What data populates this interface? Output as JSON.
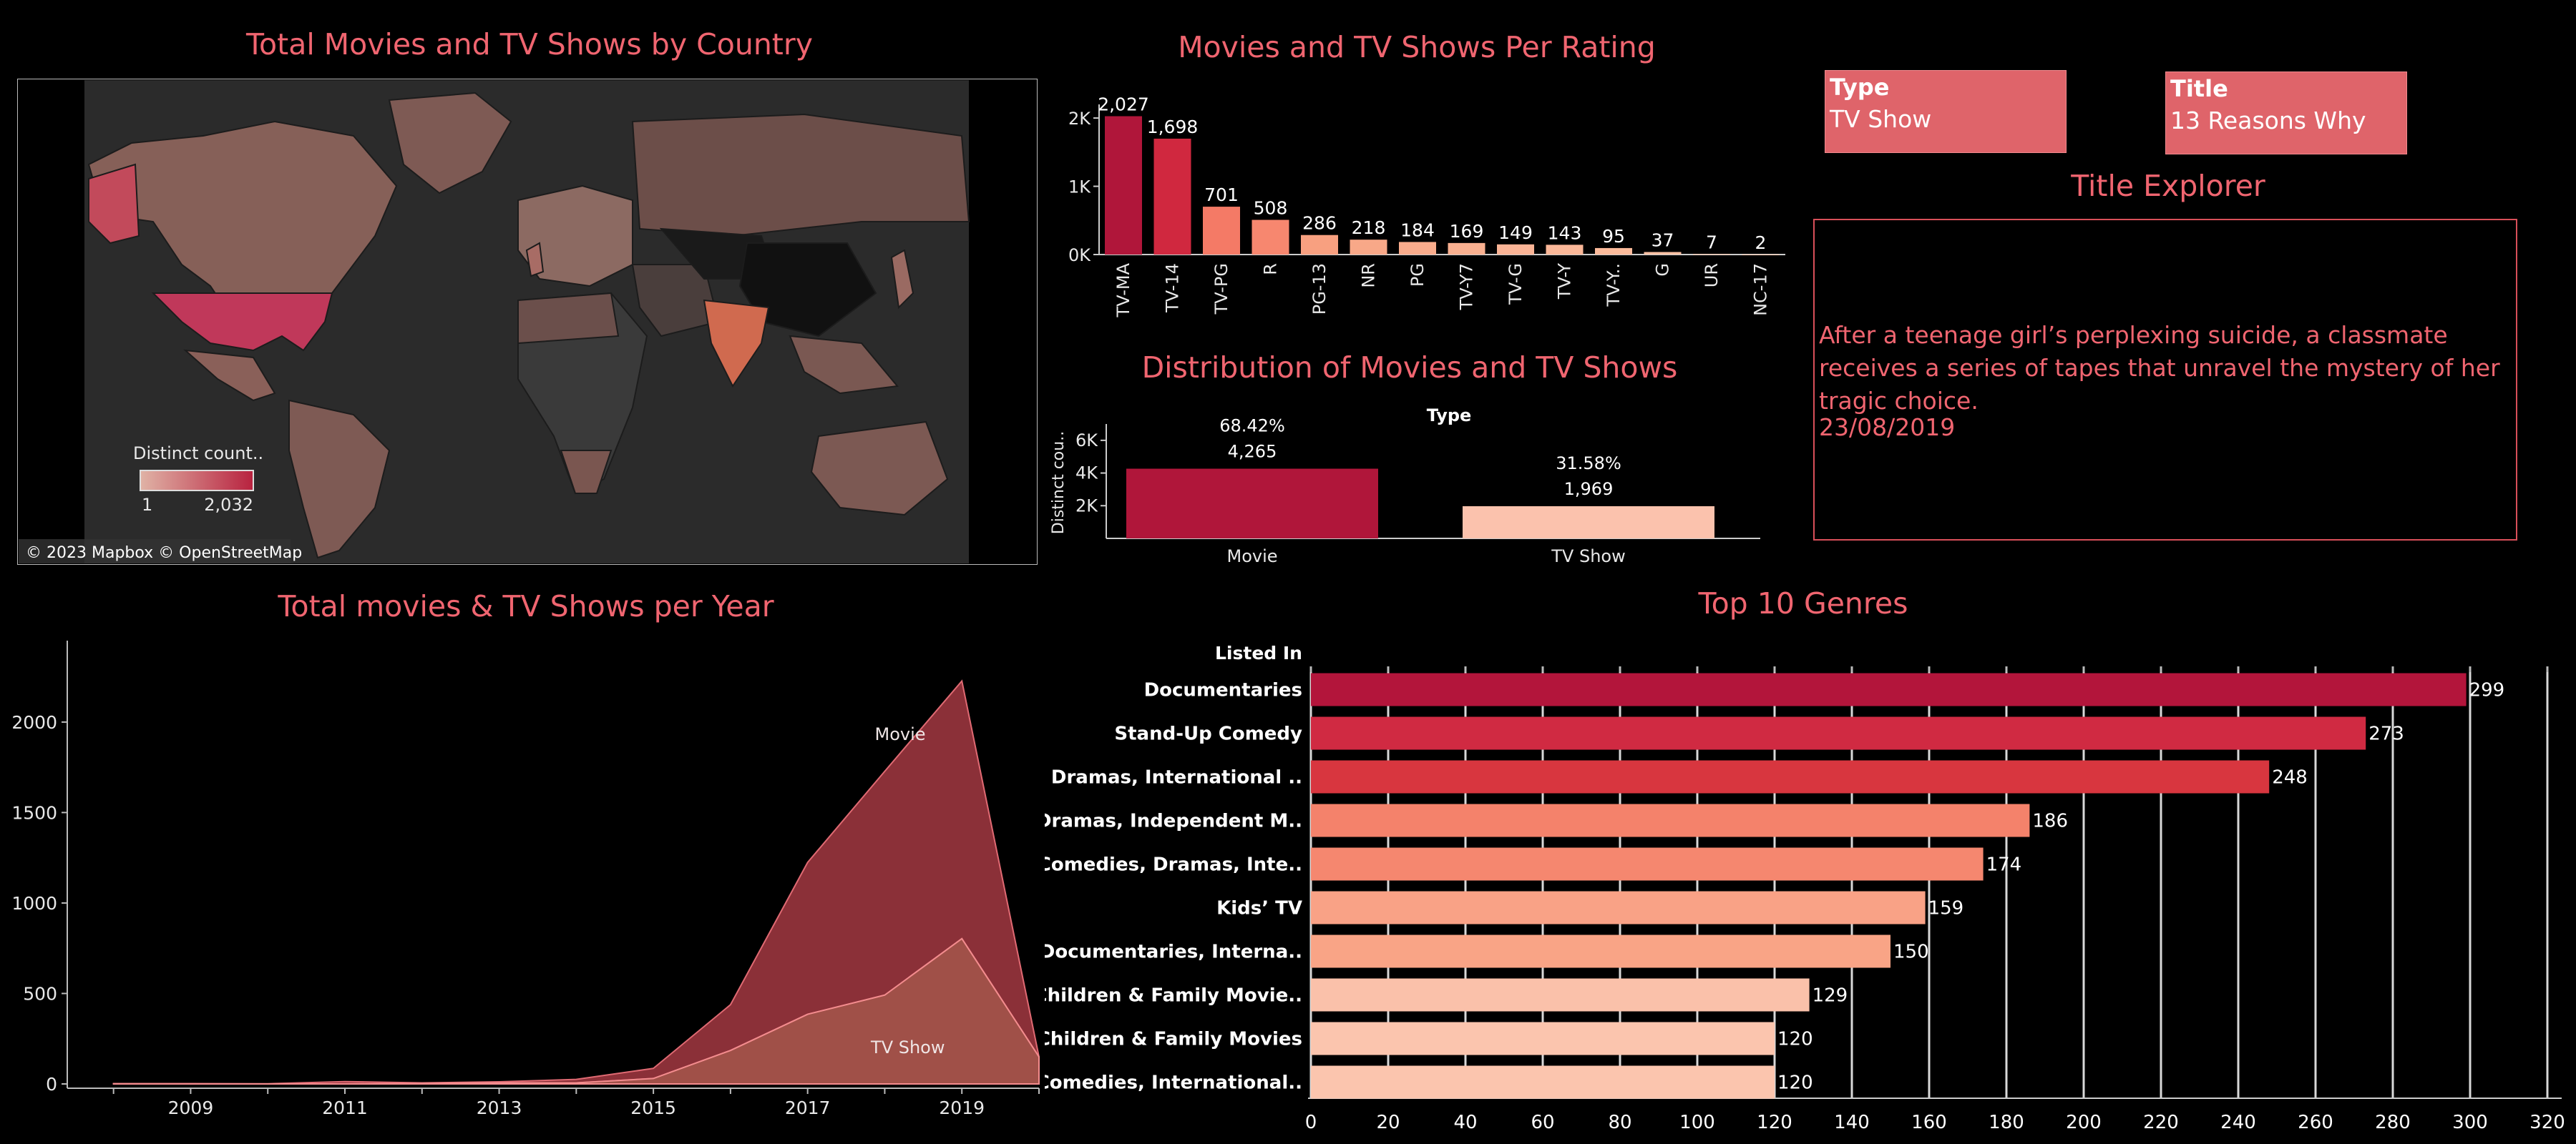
{
  "titles": {
    "map": "Total Movies and TV Shows by Country",
    "rating": "Movies and TV Shows Per Rating",
    "distribution": "Distribution of Movies and TV Shows",
    "explorer": "Title Explorer",
    "year": "Total movies & TV Shows per Year",
    "genres": "Top 10 Genres"
  },
  "filters": {
    "type_label": "Type",
    "type_value": "TV Show",
    "title_label": "Title",
    "title_value": "13 Reasons Why"
  },
  "explorer": {
    "description": "After a teenage girl’s perplexing suicide, a classmate receives a series of tapes that unravel the mystery of her tragic choice.",
    "date": "23/08/2019"
  },
  "map": {
    "legend_title": "Distinct count..",
    "legend_min": "1",
    "legend_max": "2,032",
    "attribution": "© 2023 Mapbox © OpenStreetMap",
    "colors": {
      "low": "#f7c3a6",
      "high": "#b8223f",
      "ocean": "#2b2b2b",
      "land_na": "#111111"
    }
  },
  "chart_data": [
    {
      "type": "bar",
      "title": "Movies and TV Shows Per Rating",
      "categories": [
        "TV-MA",
        "TV-14",
        "TV-PG",
        "R",
        "PG-13",
        "NR",
        "PG",
        "TV-Y7",
        "TV-G",
        "TV-Y",
        "TV-Y..",
        "G",
        "UR",
        "NC-17"
      ],
      "values": [
        2027,
        1698,
        701,
        508,
        286,
        218,
        184,
        169,
        149,
        143,
        95,
        37,
        7,
        2
      ],
      "value_labels": [
        "2,027",
        "1,698",
        "701",
        "508",
        "286",
        "218",
        "184",
        "169",
        "149",
        "143",
        "95",
        "37",
        "7",
        "2"
      ],
      "ylim": [
        0,
        2200
      ],
      "yticks": [
        0,
        1000,
        2000
      ],
      "ytick_labels": [
        "0K",
        "1K",
        "2K"
      ],
      "colors": [
        "#b0163a",
        "#d0283f",
        "#f47a66",
        "#f7876f",
        "#f8a080",
        "#f8a888",
        "#f9ac8c",
        "#f9b090",
        "#fab496",
        "#fab798",
        "#fbbb9c",
        "#fbc1a4",
        "#fbc5a8",
        "#fbc8ab"
      ]
    },
    {
      "type": "bar",
      "title": "Distribution of Movies and TV Shows",
      "header": "Type",
      "ylabel": "Distinct cou..",
      "categories": [
        "Movie",
        "TV Show"
      ],
      "values": [
        4265,
        1969
      ],
      "percent_labels": [
        "68.42%",
        "31.58%"
      ],
      "value_labels": [
        "4,265",
        "1,969"
      ],
      "ylim": [
        0,
        7000
      ],
      "yticks": [
        2000,
        4000,
        6000
      ],
      "ytick_labels": [
        "2K",
        "4K",
        "6K"
      ],
      "colors": [
        "#b0163a",
        "#fbc2ad"
      ]
    },
    {
      "type": "area",
      "title": "Total movies & TV Shows per Year",
      "x": [
        2008,
        2009,
        2010,
        2011,
        2012,
        2013,
        2014,
        2015,
        2016,
        2017,
        2018,
        2019,
        2020
      ],
      "series": [
        {
          "name": "Movie",
          "values": [
            1,
            2,
            1,
            13,
            3,
            6,
            19,
            56,
            253,
            839,
            1237,
            1424,
            0
          ]
        },
        {
          "name": "TV Show",
          "values": [
            1,
            0,
            0,
            0,
            3,
            6,
            6,
            30,
            185,
            385,
            491,
            803,
            150
          ]
        }
      ],
      "ylim": [
        0,
        2450
      ],
      "yticks": [
        0,
        500,
        1000,
        1500,
        2000
      ],
      "xticks": [
        2009,
        2011,
        2013,
        2015,
        2017,
        2019
      ],
      "colors": {
        "Movie": "#8b3038",
        "TV Show": "#a05048",
        "line_movie": "#e06a73",
        "line_tv": "#f38c8e"
      }
    },
    {
      "type": "bar",
      "orientation": "horizontal",
      "title": "Top 10 Genres",
      "header": "Listed In",
      "categories": [
        "Documentaries",
        "Stand-Up Comedy",
        "Dramas, International ..",
        "Dramas, Independent M..",
        "Comedies, Dramas, Inte..",
        "Kids’ TV",
        "Documentaries, Interna..",
        "Children & Family Movie..",
        "Children & Family Movies",
        "Comedies, International.."
      ],
      "values": [
        299,
        273,
        248,
        186,
        174,
        159,
        150,
        129,
        120,
        120
      ],
      "xlim": [
        0,
        320
      ],
      "xticks": [
        0,
        20,
        40,
        60,
        80,
        100,
        120,
        140,
        160,
        180,
        200,
        220,
        240,
        260,
        280,
        300,
        320
      ],
      "colors": [
        "#b3153b",
        "#d02a42",
        "#d8363f",
        "#f4826b",
        "#f5876f",
        "#f9a286",
        "#f9a486",
        "#fac1aa",
        "#fbc5ae",
        "#fbc5ae"
      ]
    }
  ]
}
